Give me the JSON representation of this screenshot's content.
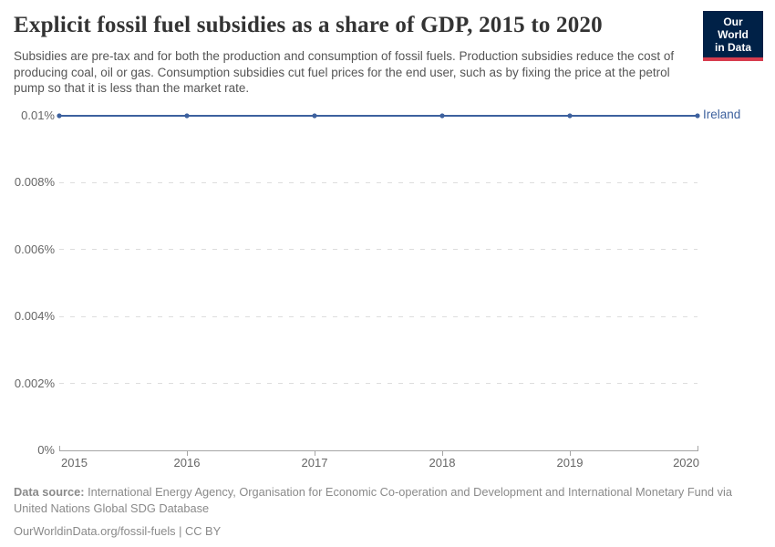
{
  "header": {
    "title": "Explicit fossil fuel subsidies as a share of GDP, 2015 to 2020",
    "subtitle": "Subsidies are pre-tax and for both the production and consumption of fossil fuels. Production subsidies reduce the cost of producing coal, oil or gas. Consumption subsidies cut fuel prices for the end user, such as by fixing the price at the petrol pump so that it is less than the market rate.",
    "logo": {
      "line1": "Our World",
      "line2": "in Data"
    }
  },
  "chart_data": {
    "type": "line",
    "title": "Explicit fossil fuel subsidies as a share of GDP, 2015 to 2020",
    "x": [
      2015,
      2016,
      2017,
      2018,
      2019,
      2020
    ],
    "xticks": [
      "2015",
      "2016",
      "2017",
      "2018",
      "2019",
      "2020"
    ],
    "series": [
      {
        "name": "Ireland",
        "values": [
          0.01,
          0.01,
          0.01,
          0.01,
          0.01,
          0.01
        ],
        "unit": "% of GDP",
        "color": "#3d619e"
      }
    ],
    "xlabel": "",
    "ylabel": "",
    "ylim": [
      0,
      0.01
    ],
    "yticks": [
      {
        "label": "0%",
        "value": 0
      },
      {
        "label": "0.002%",
        "value": 0.002
      },
      {
        "label": "0.004%",
        "value": 0.004
      },
      {
        "label": "0.006%",
        "value": 0.006
      },
      {
        "label": "0.008%",
        "value": 0.008
      },
      {
        "label": "0.01%",
        "value": 0.01
      }
    ],
    "grid": "horizontal-dashed",
    "legend": "line-end-label",
    "markers": true
  },
  "footer": {
    "datasource_label": "Data source:",
    "datasource_text": " International Energy Agency, Organisation for Economic Co-operation and Development and International Monetary Fund via United Nations Global SDG Database",
    "attribution": "OurWorldinData.org/fossil-fuels | CC BY"
  },
  "colors": {
    "line": "#3d619e",
    "series_label": "#3d619e",
    "gridline": "#dddddd",
    "axis": "#a5a5a5",
    "tick_text": "#666666",
    "title_text": "#333333",
    "subtitle_text": "#555555",
    "footer_text": "#8a8a8a",
    "logo_navy": "#002147",
    "logo_red": "#d73c4e",
    "background": "#ffffff"
  }
}
